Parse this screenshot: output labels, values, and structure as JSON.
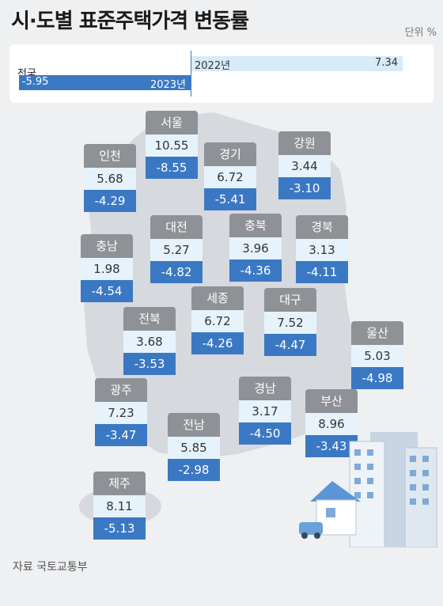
{
  "title": "시·도별 표준주택가격 변동률",
  "unit": "단위 %",
  "national": {
    "label": "전국",
    "year_2022_label": "2022년",
    "year_2023_label": "2023년",
    "value_2022": "7.34",
    "value_2023": "-5.95"
  },
  "source": "자료 국토교통부",
  "colors": {
    "header_gray": "#8e9195",
    "value_2022_bg": "#e6f3fc",
    "value_2023_bg": "#3b78c4",
    "map_gray": "#d6d9dd"
  },
  "chart_data": {
    "type": "bar",
    "title": "시·도별 표준주택가격 변동률",
    "unit": "%",
    "series": [
      {
        "name": "2022년",
        "values": [
          7.34,
          10.55,
          5.68,
          6.72,
          3.44,
          5.27,
          3.96,
          3.13,
          1.98,
          6.72,
          7.52,
          3.68,
          5.03,
          7.23,
          3.17,
          8.96,
          5.85,
          8.11
        ]
      },
      {
        "name": "2023년",
        "values": [
          -5.95,
          -8.55,
          -4.29,
          -5.41,
          -3.1,
          -4.82,
          -4.36,
          -4.11,
          -4.54,
          -4.26,
          -4.47,
          -3.53,
          -4.98,
          -3.47,
          -4.5,
          -3.43,
          -2.98,
          -5.13
        ]
      }
    ],
    "categories": [
      "전국",
      "서울",
      "인천",
      "경기",
      "강원",
      "대전",
      "충북",
      "경북",
      "충남",
      "세종",
      "대구",
      "전북",
      "울산",
      "광주",
      "경남",
      "부산",
      "전남",
      "제주"
    ],
    "national_axis_max": 7.34,
    "regions": [
      {
        "name": "서울",
        "v2022": "10.55",
        "v2023": "-8.55"
      },
      {
        "name": "인천",
        "v2022": "5.68",
        "v2023": "-4.29"
      },
      {
        "name": "경기",
        "v2022": "6.72",
        "v2023": "-5.41"
      },
      {
        "name": "강원",
        "v2022": "3.44",
        "v2023": "-3.10"
      },
      {
        "name": "대전",
        "v2022": "5.27",
        "v2023": "-4.82"
      },
      {
        "name": "충북",
        "v2022": "3.96",
        "v2023": "-4.36"
      },
      {
        "name": "경북",
        "v2022": "3.13",
        "v2023": "-4.11"
      },
      {
        "name": "충남",
        "v2022": "1.98",
        "v2023": "-4.54"
      },
      {
        "name": "세종",
        "v2022": "6.72",
        "v2023": "-4.26"
      },
      {
        "name": "대구",
        "v2022": "7.52",
        "v2023": "-4.47"
      },
      {
        "name": "전북",
        "v2022": "3.68",
        "v2023": "-3.53"
      },
      {
        "name": "울산",
        "v2022": "5.03",
        "v2023": "-4.98"
      },
      {
        "name": "광주",
        "v2022": "7.23",
        "v2023": "-3.47"
      },
      {
        "name": "경남",
        "v2022": "3.17",
        "v2023": "-4.50"
      },
      {
        "name": "부산",
        "v2022": "8.96",
        "v2023": "-3.43"
      },
      {
        "name": "전남",
        "v2022": "5.85",
        "v2023": "-2.98"
      },
      {
        "name": "제주",
        "v2022": "8.11",
        "v2023": "-5.13"
      }
    ]
  }
}
